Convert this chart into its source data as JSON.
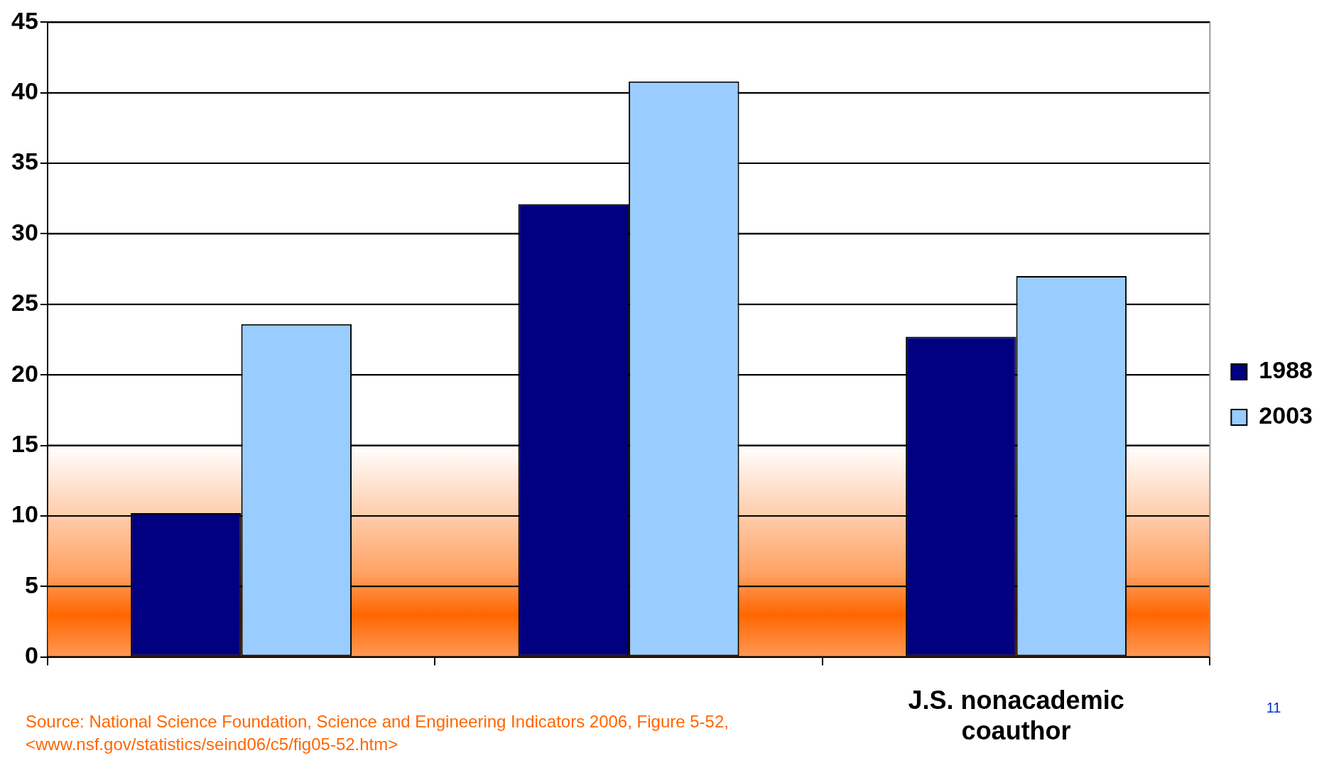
{
  "chart_data": {
    "type": "bar",
    "categories": [
      null,
      null,
      "J.S. nonacademic coauthor"
    ],
    "series": [
      {
        "name": "1988",
        "color": "#000080",
        "values": [
          10.2,
          32.1,
          22.7
        ]
      },
      {
        "name": "2003",
        "color": "#99ccff",
        "values": [
          23.6,
          40.8,
          27.0
        ]
      }
    ],
    "ylim": [
      0,
      45
    ],
    "yticks": [
      0,
      5,
      10,
      15,
      20,
      25,
      30,
      35,
      40,
      45
    ],
    "grid": "y",
    "legend": "right",
    "bands": [
      {
        "axis": "y",
        "from": 0,
        "to": 15,
        "color": "#ff6600"
      }
    ],
    "annotations": [
      "Source: National Science Foundation, Science and Engineering Indicators 2006, Figure 5-52, <www.nsf.gov/statistics/seind06/c5/fig05-52.htm>",
      "11"
    ]
  }
}
